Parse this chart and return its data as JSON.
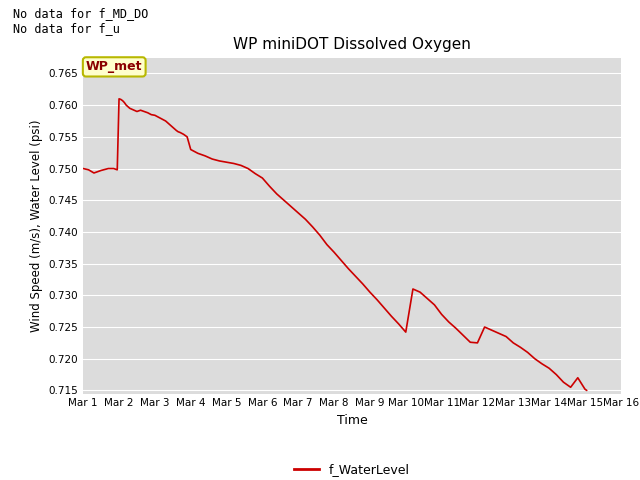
{
  "title": "WP miniDOT Dissolved Oxygen",
  "xlabel": "Time",
  "ylabel": "Wind Speed (m/s), Water Level (psi)",
  "annotations": [
    "No data for f_MD_DO",
    "No data for f_u"
  ],
  "legend_label": "f_WaterLevel",
  "legend_box_label": "WP_met",
  "line_color": "#cc0000",
  "background_color": "#dcdcdc",
  "ylim": [
    0.7145,
    0.7675
  ],
  "yticks": [
    0.715,
    0.72,
    0.725,
    0.73,
    0.735,
    0.74,
    0.745,
    0.75,
    0.755,
    0.76,
    0.765
  ],
  "x_days": [
    1,
    2,
    3,
    4,
    5,
    6,
    7,
    8,
    9,
    10,
    11,
    12,
    13,
    14,
    15,
    16
  ],
  "time_values": [
    1.0,
    1.15,
    1.3,
    1.5,
    1.7,
    1.85,
    1.95,
    2.0,
    2.05,
    2.1,
    2.15,
    2.2,
    2.3,
    2.5,
    2.6,
    2.7,
    2.8,
    2.9,
    3.0,
    3.1,
    3.2,
    3.3,
    3.4,
    3.5,
    3.6,
    3.65,
    3.7,
    3.8,
    3.9,
    4.0,
    4.1,
    4.2,
    4.4,
    4.6,
    4.8,
    5.0,
    5.2,
    5.4,
    5.6,
    5.8,
    6.0,
    6.2,
    6.4,
    6.6,
    6.8,
    7.0,
    7.2,
    7.4,
    7.6,
    7.8,
    8.0,
    8.2,
    8.4,
    8.6,
    8.8,
    9.0,
    9.2,
    9.4,
    9.6,
    9.8,
    10.0,
    10.2,
    10.4,
    10.6,
    10.8,
    11.0,
    11.2,
    11.4,
    11.6,
    11.8,
    12.0,
    12.2,
    12.4,
    12.6,
    12.8,
    13.0,
    13.2,
    13.4,
    13.6,
    13.8,
    14.0,
    14.2,
    14.4,
    14.6,
    14.8,
    15.0,
    15.05
  ],
  "water_values": [
    0.75,
    0.7498,
    0.7493,
    0.7497,
    0.75,
    0.75,
    0.7498,
    0.761,
    0.7609,
    0.7607,
    0.7604,
    0.76,
    0.7595,
    0.759,
    0.7592,
    0.759,
    0.7588,
    0.7585,
    0.7584,
    0.7581,
    0.7578,
    0.7575,
    0.757,
    0.7565,
    0.756,
    0.7558,
    0.7557,
    0.7554,
    0.755,
    0.753,
    0.7527,
    0.7524,
    0.752,
    0.7515,
    0.7512,
    0.751,
    0.7508,
    0.7505,
    0.75,
    0.7492,
    0.7485,
    0.7472,
    0.746,
    0.745,
    0.744,
    0.743,
    0.742,
    0.7408,
    0.7395,
    0.738,
    0.7368,
    0.7355,
    0.7342,
    0.733,
    0.7318,
    0.7305,
    0.7293,
    0.728,
    0.7267,
    0.7255,
    0.7242,
    0.731,
    0.7305,
    0.7295,
    0.7285,
    0.727,
    0.7258,
    0.7248,
    0.7237,
    0.7226,
    0.7225,
    0.725,
    0.7245,
    0.724,
    0.7235,
    0.7225,
    0.7218,
    0.721,
    0.72,
    0.7192,
    0.7185,
    0.7175,
    0.7163,
    0.7155,
    0.717,
    0.7152,
    0.715
  ]
}
